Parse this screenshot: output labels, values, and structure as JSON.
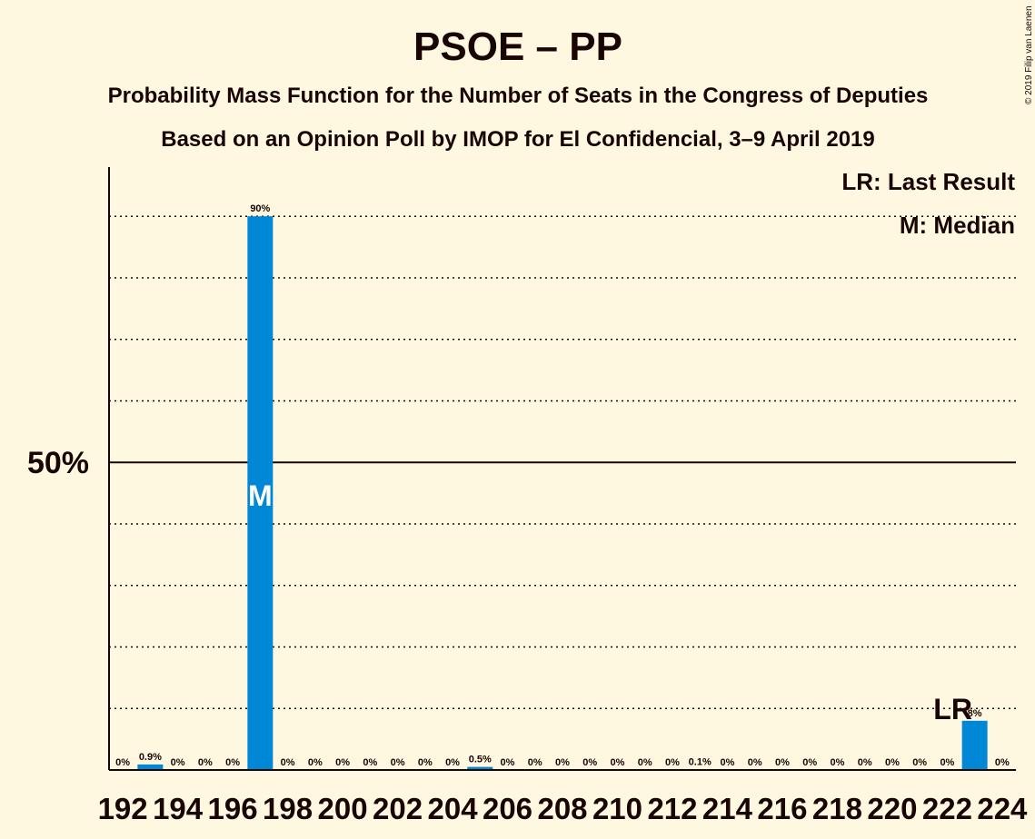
{
  "title": "PSOE – PP",
  "subtitle1": "Probability Mass Function for the Number of Seats in the Congress of Deputies",
  "subtitle2": "Based on an Opinion Poll by IMOP for El Confidencial, 3–9 April 2019",
  "legend": {
    "lr": "LR: Last Result",
    "m": "M: Median"
  },
  "copyright": "© 2019 Filip van Laenen",
  "colors": {
    "background": "#fff8e1",
    "bar": "#0088d6",
    "text": "#1a0505"
  },
  "chart_data": {
    "type": "bar",
    "x": [
      192,
      193,
      194,
      195,
      196,
      197,
      198,
      199,
      200,
      201,
      202,
      203,
      204,
      205,
      206,
      207,
      208,
      209,
      210,
      211,
      212,
      213,
      214,
      215,
      216,
      217,
      218,
      219,
      220,
      221,
      222,
      223,
      224
    ],
    "values": [
      0,
      0.9,
      0,
      0,
      0,
      90,
      0,
      0,
      0,
      0,
      0,
      0,
      0,
      0.5,
      0,
      0,
      0,
      0,
      0,
      0,
      0,
      0.1,
      0,
      0,
      0,
      0,
      0,
      0,
      0,
      0,
      0,
      8,
      0
    ],
    "value_labels": [
      "0%",
      "0.9%",
      "0%",
      "0%",
      "0%",
      "90%",
      "0%",
      "0%",
      "0%",
      "0%",
      "0%",
      "0%",
      "0%",
      "0.5%",
      "0%",
      "0%",
      "0%",
      "0%",
      "0%",
      "0%",
      "0%",
      "0.1%",
      "0%",
      "0%",
      "0%",
      "0%",
      "0%",
      "0%",
      "0%",
      "0%",
      "0%",
      "8%",
      "0%"
    ],
    "x_tick_labels": [
      "192",
      "194",
      "196",
      "198",
      "200",
      "202",
      "204",
      "206",
      "208",
      "210",
      "212",
      "214",
      "216",
      "218",
      "220",
      "222",
      "224"
    ],
    "y_tick_label": "50%",
    "ylim": [
      0,
      98
    ],
    "gridlines_dotted_at": [
      10,
      20,
      30,
      40,
      60,
      70,
      80,
      90
    ],
    "gridline_solid_at": 50,
    "median_seat": 197,
    "median_marker": "M",
    "last_result_seat": 223,
    "last_result_marker": "LR"
  }
}
